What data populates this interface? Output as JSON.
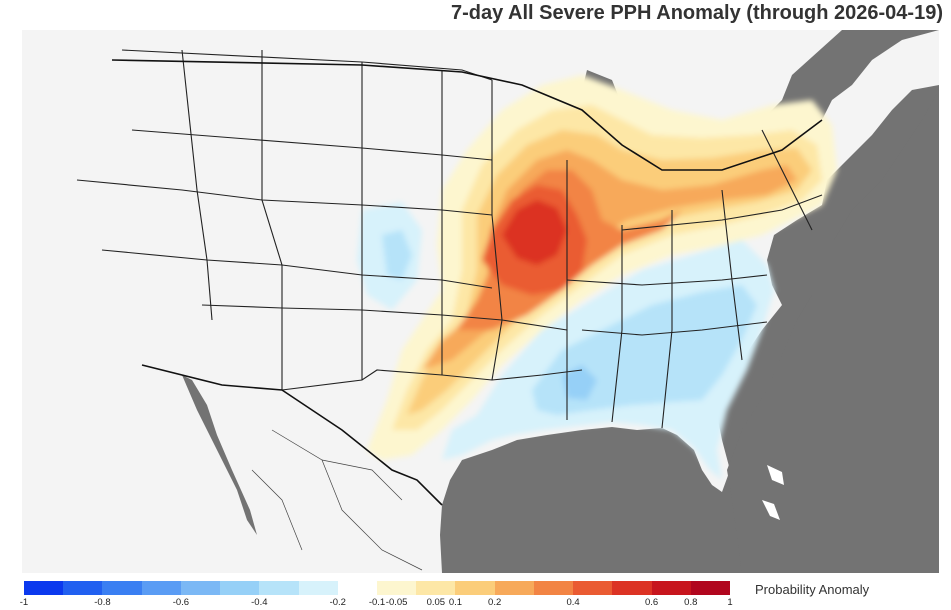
{
  "title": "7-day All Severe PPH Anomaly (through 2026-04-19)",
  "legend": {
    "label": "Probability Anomaly",
    "ticks": [
      "-1",
      "-0.8",
      "-0.6",
      "-0.4",
      "-0.2",
      "-0.1",
      "-0.05",
      "0.05",
      "0.1",
      "0.2",
      "0.4",
      "0.6",
      "0.8",
      "1"
    ],
    "colors": [
      "#0b39ee",
      "#2160f0",
      "#3a7ff2",
      "#5a9cf4",
      "#7bb8f5",
      "#96d0f7",
      "#b6e3f9",
      "#d7f2fb",
      "#ffffff",
      "#fdf6cf",
      "#fde7a6",
      "#fbcd7a",
      "#f7a95a",
      "#f28444",
      "#ea5b32",
      "#dc3324",
      "#c7151d",
      "#b1061e"
    ]
  },
  "colors": {
    "background": "#737373",
    "land": "#f4f4f4",
    "water": "#737373",
    "border": "#222222"
  },
  "anomaly_regions": [
    {
      "region": "Upper Midwest / Iowa-Illinois",
      "sign": "positive",
      "max_level": 0.8
    },
    {
      "region": "Great Lakes to New England",
      "sign": "positive",
      "max_level": 0.4
    },
    {
      "region": "Southern Plains (Oklahoma/Texas)",
      "sign": "positive",
      "max_level": 0.4
    },
    {
      "region": "Southeast / Gulf Coast",
      "sign": "negative",
      "max_level": -0.2
    },
    {
      "region": "Central High Plains",
      "sign": "negative",
      "max_level": -0.1
    }
  ]
}
